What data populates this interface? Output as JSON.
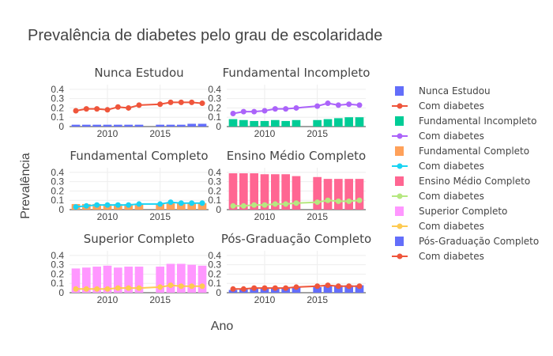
{
  "chart_data": {
    "type": "bar",
    "title": "Prevalência de diabetes pelo grau de escolaridade",
    "xlabel": "Ano",
    "ylabel": "Prevalência",
    "ylim": [
      0,
      0.45
    ],
    "y_ticks": [
      "0",
      "0.1",
      "0.2",
      "0.3",
      "0.4"
    ],
    "y_tick_values": [
      0,
      0.1,
      0.2,
      0.3,
      0.4
    ],
    "x_ticks": [
      "2010",
      "2015"
    ],
    "x_tick_values": [
      2010,
      2015
    ],
    "xlim": [
      2006.4,
      2019.6
    ],
    "years": [
      2007,
      2008,
      2009,
      2010,
      2011,
      2012,
      2013,
      2015,
      2016,
      2017,
      2018,
      2019
    ],
    "legend_placement": "right",
    "grid": true,
    "panels": [
      {
        "title": "Nunca Estudou",
        "bar_name": "Nunca Estudou",
        "line_name": "Com diabetes",
        "bar_color": "#636efa",
        "line_color": "#EF553B",
        "bar_values": [
          0.02,
          0.02,
          0.02,
          0.02,
          0.02,
          0.02,
          0.02,
          0.02,
          0.02,
          0.02,
          0.03,
          0.03
        ],
        "line_values": [
          0.17,
          0.19,
          0.19,
          0.18,
          0.21,
          0.2,
          0.23,
          0.24,
          0.26,
          0.26,
          0.26,
          0.25
        ]
      },
      {
        "title": "Fundamental Incompleto",
        "bar_name": "Fundamental Incompleto",
        "line_name": "Com diabetes",
        "bar_color": "#00cc96",
        "line_color": "#ab63fa",
        "bar_values": [
          0.08,
          0.07,
          0.06,
          0.06,
          0.07,
          0.06,
          0.07,
          0.07,
          0.08,
          0.09,
          0.1,
          0.1
        ],
        "line_values": [
          0.14,
          0.16,
          0.16,
          0.17,
          0.19,
          0.19,
          0.2,
          0.22,
          0.25,
          0.23,
          0.24,
          0.23
        ]
      },
      {
        "title": "Fundamental Completo",
        "bar_name": "Fundamental Completo",
        "line_name": "Com diabetes",
        "bar_color": "#FFA15A",
        "line_color": "#19d3f3",
        "bar_values": [
          0.06,
          0.06,
          0.06,
          0.06,
          0.06,
          0.06,
          0.06,
          0.06,
          0.07,
          0.07,
          0.07,
          0.07
        ],
        "line_values": [
          0.03,
          0.04,
          0.05,
          0.05,
          0.05,
          0.05,
          0.06,
          0.06,
          0.08,
          0.07,
          0.07,
          0.07
        ]
      },
      {
        "title": "Ensino Médio Completo",
        "bar_name": "Ensino Médio Completo",
        "line_name": "Com diabetes",
        "bar_color": "#FF6692",
        "line_color": "#B6E880",
        "bar_values": [
          0.39,
          0.39,
          0.39,
          0.38,
          0.38,
          0.38,
          0.36,
          0.35,
          0.33,
          0.33,
          0.33,
          0.33
        ],
        "line_values": [
          0.04,
          0.04,
          0.05,
          0.05,
          0.06,
          0.06,
          0.07,
          0.08,
          0.1,
          0.09,
          0.09,
          0.1
        ]
      },
      {
        "title": "Superior Completo",
        "bar_name": "Superior Completo",
        "line_name": "Com diabetes",
        "bar_color": "#FF97FF",
        "line_color": "#FECB52",
        "bar_values": [
          0.26,
          0.27,
          0.28,
          0.29,
          0.27,
          0.28,
          0.28,
          0.28,
          0.31,
          0.31,
          0.3,
          0.29
        ],
        "line_values": [
          0.04,
          0.04,
          0.04,
          0.04,
          0.05,
          0.05,
          0.05,
          0.06,
          0.08,
          0.07,
          0.07,
          0.07
        ]
      },
      {
        "title": "Pós-Graduação Completo",
        "bar_name": "Pós-Graduação Completo",
        "line_name": "Com diabetes",
        "bar_color": "#636efa",
        "line_color": "#EF553B",
        "bar_values": [
          0.03,
          0.04,
          0.05,
          0.05,
          0.05,
          0.05,
          0.06,
          0.06,
          0.08,
          0.08,
          0.08,
          0.08
        ],
        "line_values": [
          0.04,
          0.04,
          0.05,
          0.05,
          0.05,
          0.05,
          0.06,
          0.07,
          0.08,
          0.07,
          0.07,
          0.07
        ]
      }
    ]
  }
}
